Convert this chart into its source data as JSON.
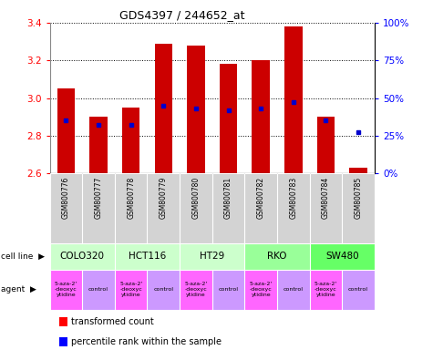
{
  "title": "GDS4397 / 244652_at",
  "samples": [
    "GSM800776",
    "GSM800777",
    "GSM800778",
    "GSM800779",
    "GSM800780",
    "GSM800781",
    "GSM800782",
    "GSM800783",
    "GSM800784",
    "GSM800785"
  ],
  "transformed_counts": [
    3.05,
    2.9,
    2.95,
    3.29,
    3.28,
    3.18,
    3.2,
    3.38,
    2.9,
    2.63
  ],
  "percentile_ranks": [
    35,
    32,
    32,
    45,
    43,
    42,
    43,
    47,
    35,
    27
  ],
  "ylim": [
    2.6,
    3.4
  ],
  "yticks": [
    2.6,
    2.8,
    3.0,
    3.2,
    3.4
  ],
  "y2ticks": [
    0,
    25,
    50,
    75,
    100
  ],
  "y2labels": [
    "0%",
    "25%",
    "50%",
    "75%",
    "100%"
  ],
  "bar_color": "#cc0000",
  "dot_color": "#0000cc",
  "cell_line_groups": [
    {
      "name": "COLO320",
      "cols": [
        0,
        1
      ],
      "color": "#ccffcc"
    },
    {
      "name": "HCT116",
      "cols": [
        2,
        3
      ],
      "color": "#ccffcc"
    },
    {
      "name": "HT29",
      "cols": [
        4,
        5
      ],
      "color": "#ccffcc"
    },
    {
      "name": "RKO",
      "cols": [
        6,
        7
      ],
      "color": "#99ff99"
    },
    {
      "name": "SW480",
      "cols": [
        8,
        9
      ],
      "color": "#66ff66"
    }
  ],
  "agent_labels": [
    "5-aza-2'\n-deoxyc\nytidine",
    "control",
    "5-aza-2'\n-deoxyc\nytidine",
    "control",
    "5-aza-2'\n-deoxyc\nytidine",
    "control",
    "5-aza-2'\n-deoxyc\nytidine",
    "control",
    "5-aza-2'\n-deoxyc\nytidine",
    "control"
  ],
  "agent_colors": [
    "#ff66ff",
    "#cc99ff",
    "#ff66ff",
    "#cc99ff",
    "#ff66ff",
    "#cc99ff",
    "#ff66ff",
    "#cc99ff",
    "#ff66ff",
    "#cc99ff"
  ],
  "sample_bg_color": "#d3d3d3",
  "bar_baseline": 2.6,
  "grid_color": "#000000",
  "fig_bg": "#ffffff"
}
